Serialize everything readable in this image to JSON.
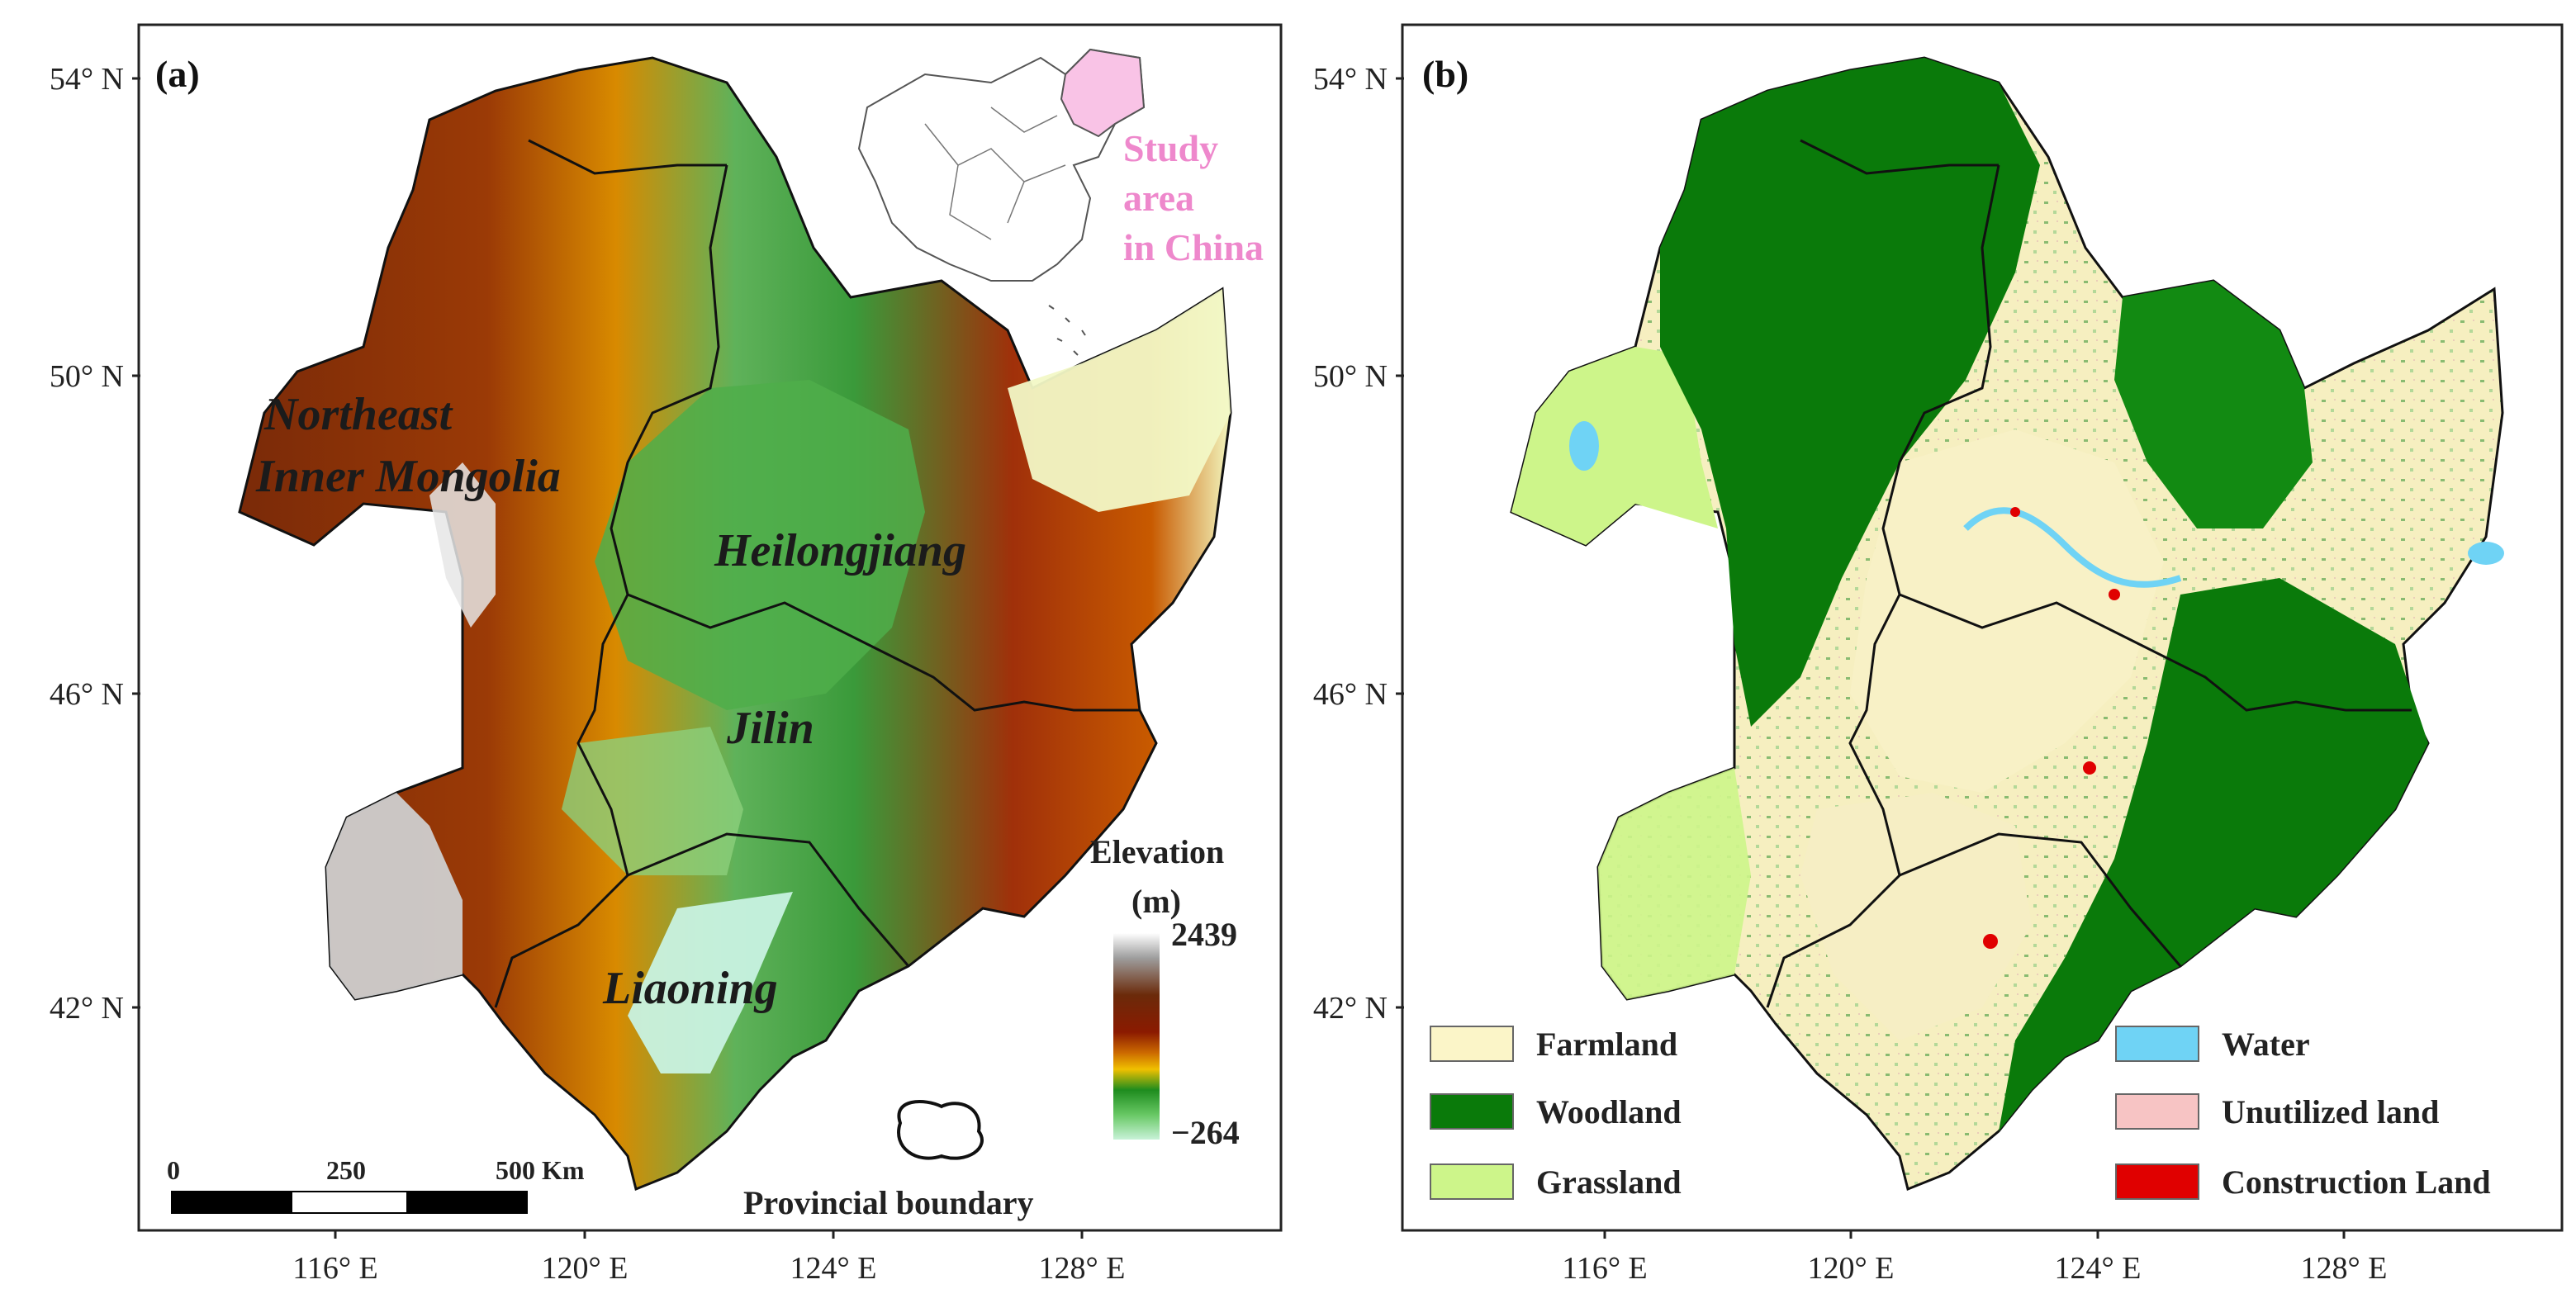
{
  "panel_a": {
    "label": "(a)",
    "lat_ticks": [
      "54° N",
      "50° N",
      "46° N",
      "42° N"
    ],
    "lon_ticks": [
      "116° E",
      "120° E",
      "124° E",
      "128° E"
    ],
    "provinces": [
      "Northeast",
      "Inner Mongolia",
      "Heilongjiang",
      "Jilin",
      "Liaoning"
    ],
    "inset": {
      "line1": "Study",
      "line2": "area",
      "line3": "in China",
      "highlight": "#f9c3e6"
    },
    "elevation_legend": {
      "title_line1": "Elevation",
      "title_line2": "(m)",
      "max": "2439",
      "min": "−264",
      "colors": [
        "#ffffff",
        "#9e9e9e",
        "#6b2a0a",
        "#8b1a00",
        "#cc6a00",
        "#f0c000",
        "#1e8c1e",
        "#68c864",
        "#c8f2d8"
      ]
    },
    "scale_bar": {
      "labels": [
        "0",
        "250",
        "500 Km"
      ]
    },
    "boundary_legend": {
      "label": "Provincial boundary"
    }
  },
  "panel_b": {
    "label": "(b)",
    "lat_ticks": [
      "54° N",
      "50° N",
      "46° N",
      "42° N"
    ],
    "lon_ticks": [
      "116° E",
      "120° E",
      "124° E",
      "128° E"
    ],
    "legend": [
      {
        "label": "Farmland",
        "color": "#fbf5c8"
      },
      {
        "label": "Woodland",
        "color": "#0a7a0a"
      },
      {
        "label": "Grassland",
        "color": "#cdf58a"
      },
      {
        "label": "Water",
        "color": "#6fd3f5"
      },
      {
        "label": "Unutilized land",
        "color": "#f7c4c4"
      },
      {
        "label": "Construction Land",
        "color": "#e00000"
      }
    ]
  }
}
